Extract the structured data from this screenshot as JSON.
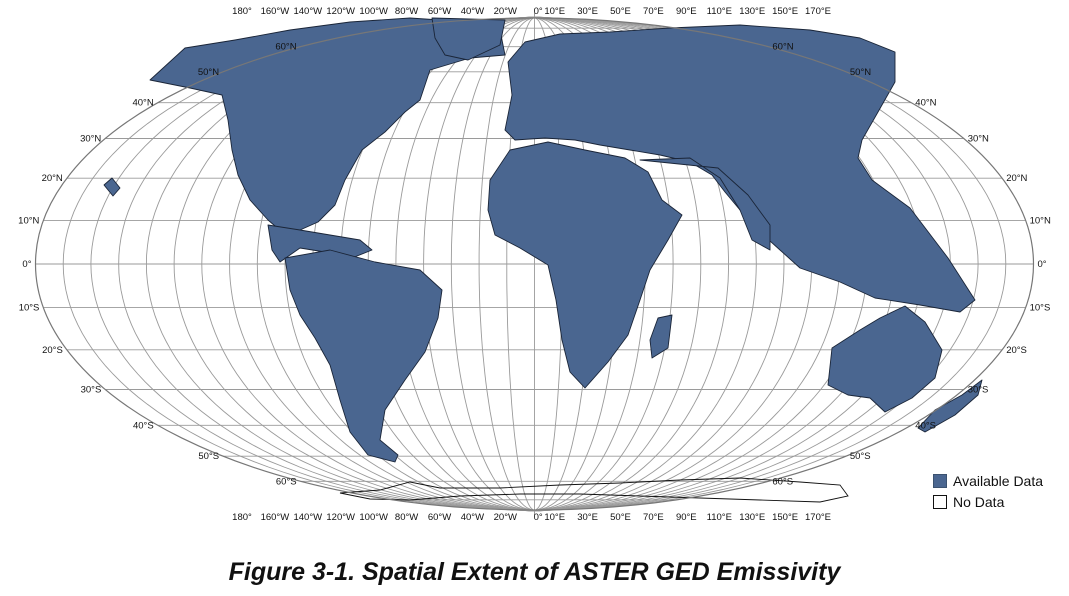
{
  "colors": {
    "available": "#4a6690",
    "no_data": "#ffffff",
    "graticule": "#9a9a9a"
  },
  "lon_labels": [
    "180°",
    "160°W",
    "140°W",
    "120°W",
    "100°W",
    "80°W",
    "60°W",
    "40°W",
    "20°W",
    "0°",
    "10°E",
    "30°E",
    "50°E",
    "70°E",
    "90°E",
    "110°E",
    "130°E",
    "150°E",
    "170°E"
  ],
  "lon_values": [
    -180,
    -160,
    -140,
    -120,
    -100,
    -80,
    -60,
    -40,
    -20,
    0,
    10,
    30,
    50,
    70,
    90,
    110,
    130,
    150,
    170
  ],
  "lat_labels": [
    "60°N",
    "50°N",
    "40°N",
    "30°N",
    "20°N",
    "10°N",
    "0°",
    "10°S",
    "20°S",
    "30°S",
    "40°S",
    "50°S",
    "60°S"
  ],
  "lat_values": [
    60,
    50,
    40,
    30,
    20,
    10,
    0,
    -10,
    -20,
    -30,
    -40,
    -50,
    -60
  ],
  "legend": [
    {
      "label": "Available Data",
      "color": "#4a6690"
    },
    {
      "label": "No Data",
      "color": "#ffffff"
    }
  ],
  "caption": "Figure 3-1. Spatial Extent of ASTER GED Emissivity"
}
